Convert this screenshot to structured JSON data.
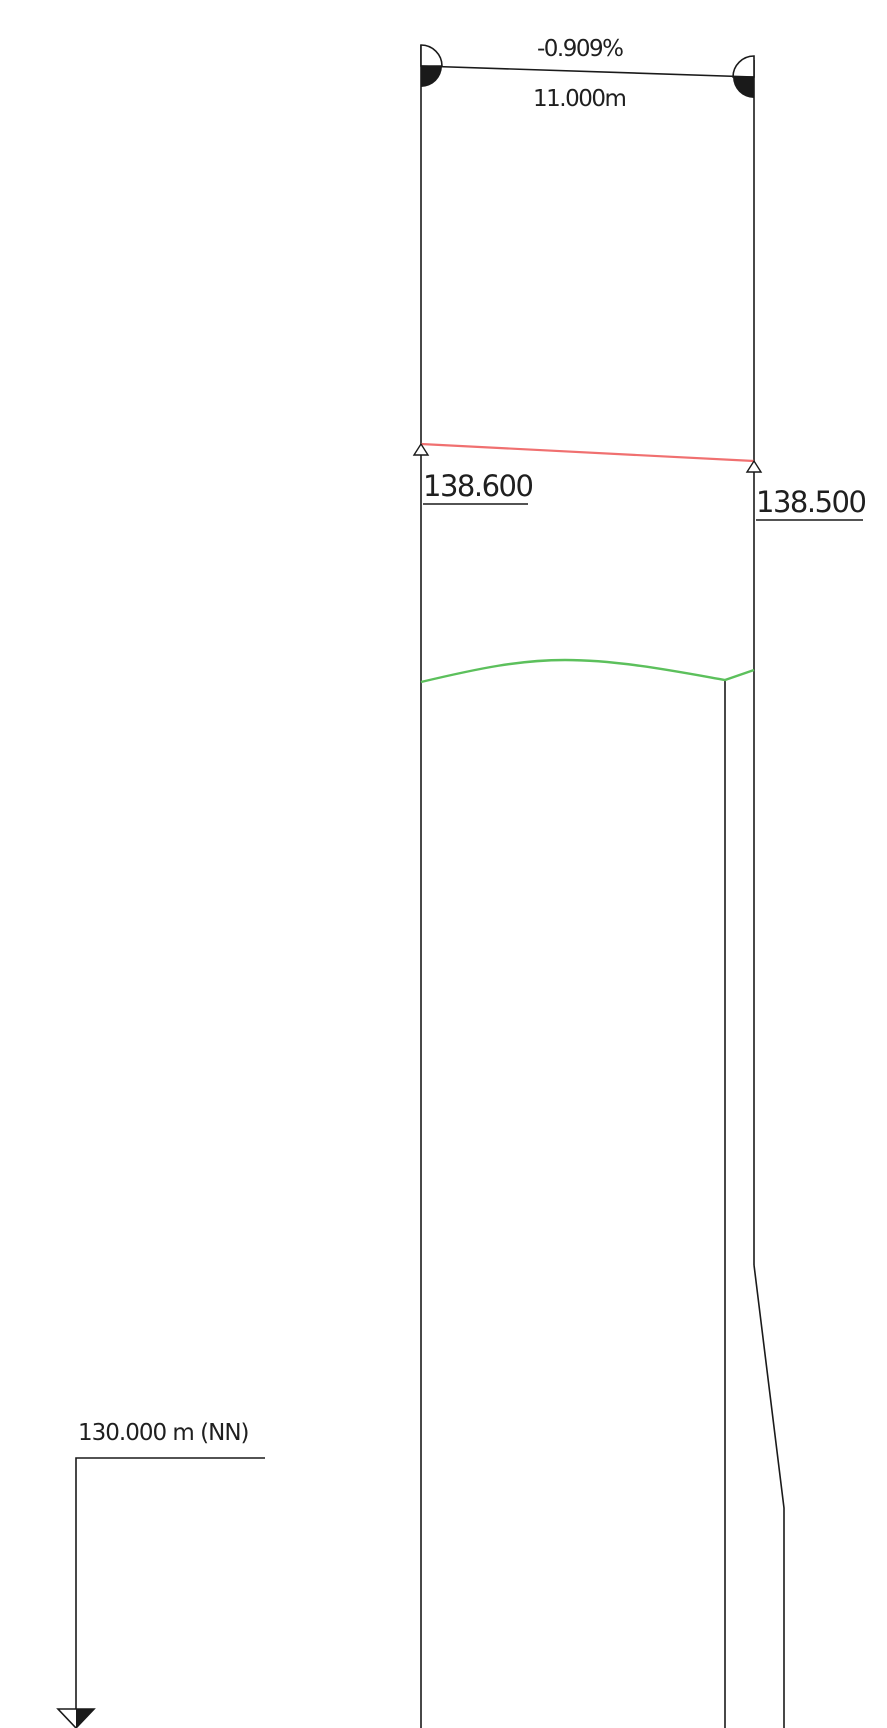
{
  "profile": {
    "slope_percent": "-0.909%",
    "segment_length": "11.000m",
    "left_elevation": "138.600",
    "right_elevation": "138.500",
    "datum_label": "130.000 m (NN)"
  },
  "colors": {
    "line": "#1a1a1a",
    "design_line": "#f07070",
    "terrain_line": "#5cc05c",
    "background": "#ffffff"
  }
}
